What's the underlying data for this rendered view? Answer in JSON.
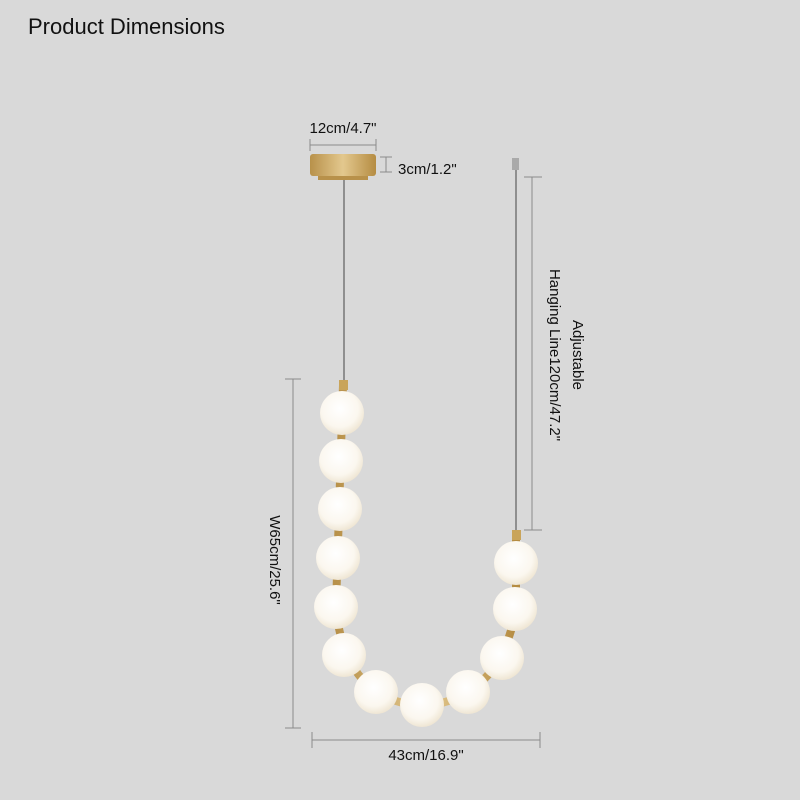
{
  "title": "Product Dimensions",
  "dimensions": {
    "canopy_width": "12cm/4.7\"",
    "canopy_height": "3cm/1.2\"",
    "hanging_line_line1": "Adjustable",
    "hanging_line_line2": "Hanging Line120cm/47.2\"",
    "height": "W65cm/25.6\"",
    "width": "43cm/16.9\""
  },
  "colors": {
    "background": "#d9d9d9",
    "brass": "#c9a45a",
    "globe": "#fbf8f2",
    "dimension_line": "#8a8a8a"
  }
}
